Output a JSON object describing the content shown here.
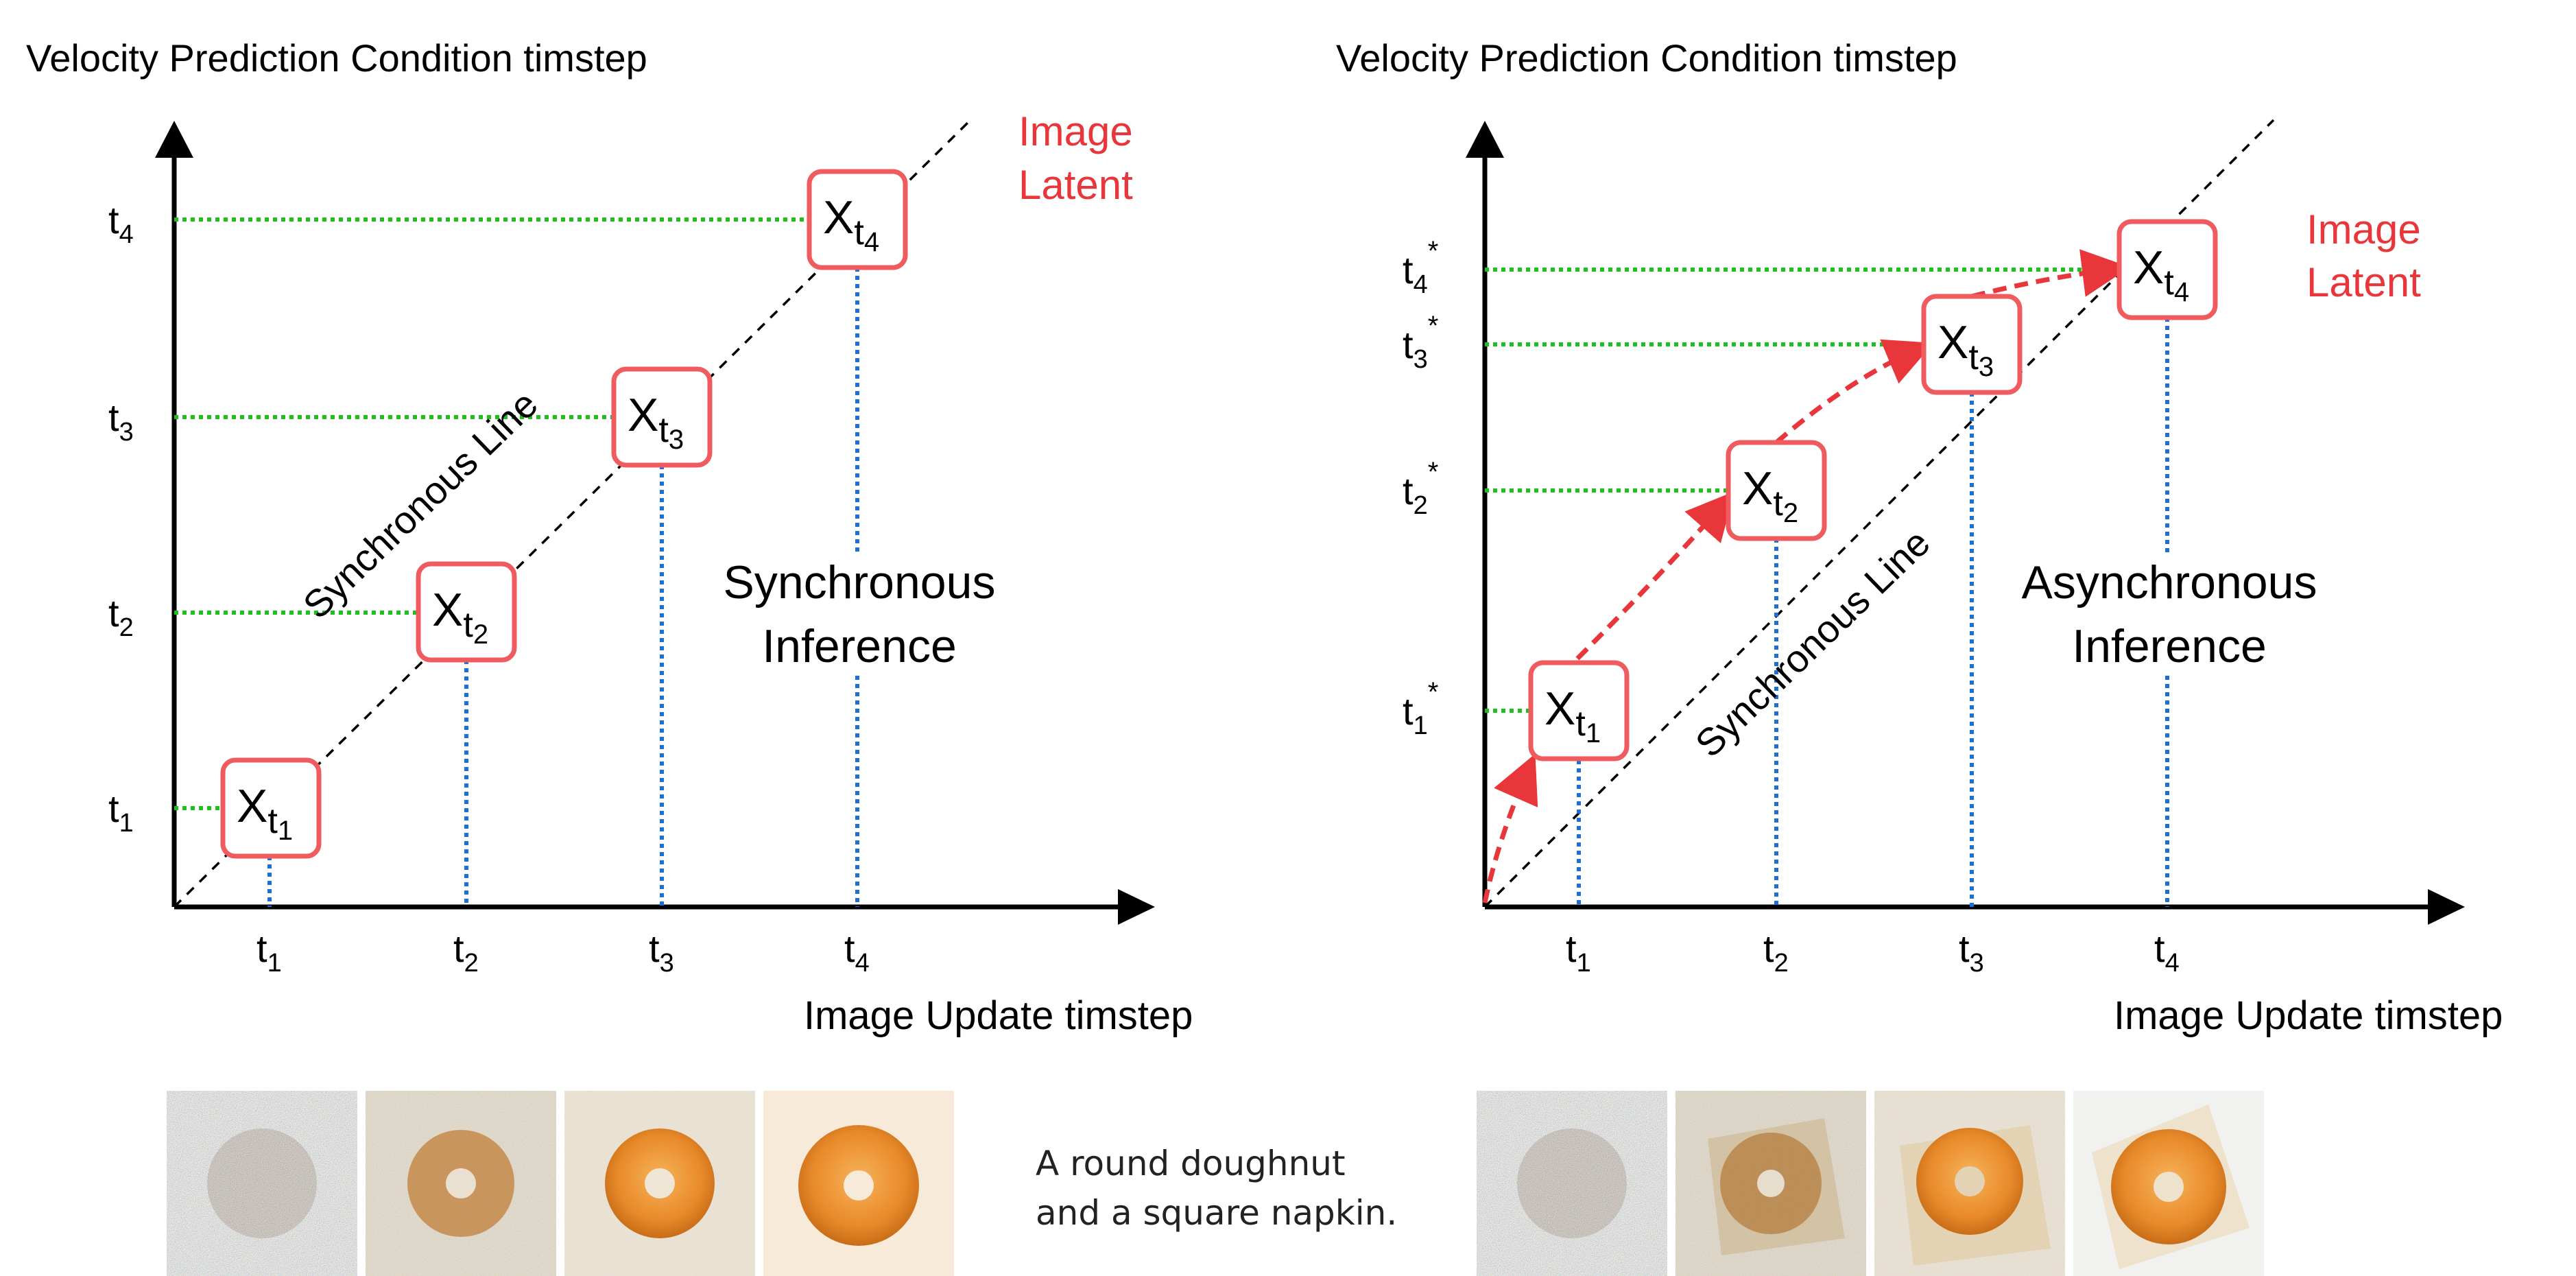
{
  "left_panel": {
    "y_axis_title": "Velocity Prediction Condition timstep",
    "x_axis_title": "Image Update timstep",
    "legend": [
      "Image",
      "Latent"
    ],
    "diag_label": "Synchronous Line",
    "center_label": [
      "Synchronous",
      "Inference"
    ],
    "x_ticks": [
      {
        "base": "t",
        "sub": "1"
      },
      {
        "base": "t",
        "sub": "2"
      },
      {
        "base": "t",
        "sub": "3"
      },
      {
        "base": "t",
        "sub": "4"
      }
    ],
    "y_ticks": [
      {
        "base": "t",
        "sub": "1",
        "sup": ""
      },
      {
        "base": "t",
        "sub": "2",
        "sup": ""
      },
      {
        "base": "t",
        "sub": "3",
        "sup": ""
      },
      {
        "base": "t",
        "sub": "4",
        "sup": ""
      }
    ],
    "nodes": [
      {
        "base": "X",
        "sub": "t",
        "subsub": "1"
      },
      {
        "base": "X",
        "sub": "t",
        "subsub": "2"
      },
      {
        "base": "X",
        "sub": "t",
        "subsub": "3"
      },
      {
        "base": "X",
        "sub": "t",
        "subsub": "4"
      }
    ],
    "thumbnails": [
      "noise",
      "noisy-doughnut",
      "light-noise-doughnut",
      "clean-doughnut"
    ]
  },
  "right_panel": {
    "y_axis_title": "Velocity Prediction Condition timstep",
    "x_axis_title": "Image Update timstep",
    "legend": [
      "Image",
      "Latent"
    ],
    "diag_label": "Synchronous Line",
    "center_label": [
      "Asynchronous",
      "Inference"
    ],
    "x_ticks": [
      {
        "base": "t",
        "sub": "1"
      },
      {
        "base": "t",
        "sub": "2"
      },
      {
        "base": "t",
        "sub": "3"
      },
      {
        "base": "t",
        "sub": "4"
      }
    ],
    "y_ticks": [
      {
        "base": "t",
        "sub": "1",
        "sup": "*"
      },
      {
        "base": "t",
        "sub": "2",
        "sup": "*"
      },
      {
        "base": "t",
        "sub": "3",
        "sup": "*"
      },
      {
        "base": "t",
        "sub": "4",
        "sup": "*"
      }
    ],
    "nodes": [
      {
        "base": "X",
        "sub": "t",
        "subsub": "1"
      },
      {
        "base": "X",
        "sub": "t",
        "subsub": "2"
      },
      {
        "base": "X",
        "sub": "t",
        "subsub": "3"
      },
      {
        "base": "X",
        "sub": "t",
        "subsub": "4"
      }
    ],
    "thumbnails": [
      "noise",
      "noisy-doughnut-napkin",
      "light-noise-doughnut-napkin",
      "clean-doughnut-napkin"
    ]
  },
  "caption": {
    "line1": "A round doughnut",
    "line2": "and a square napkin."
  },
  "colors": {
    "red": "#e8363a",
    "node_border": "#ef5b5e",
    "green": "#1ec01e",
    "blue": "#1d6fd6",
    "black": "#000000"
  }
}
